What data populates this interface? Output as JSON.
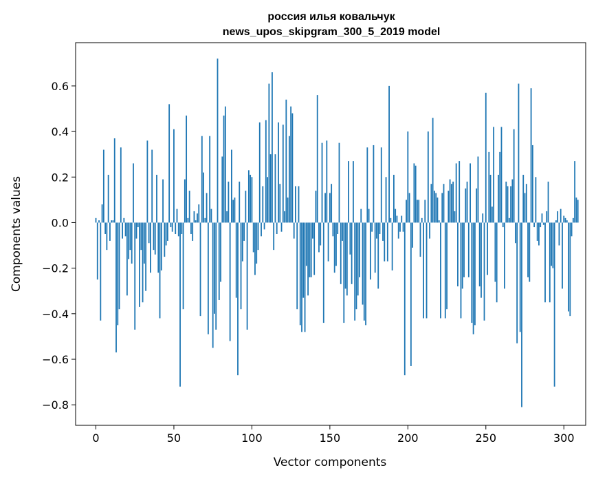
{
  "chart_data": {
    "type": "bar",
    "title_line1": "россия илья ковальчук",
    "title_line2": "news_upos_skipgram_300_5_2019 model",
    "xlabel": "Vector components",
    "ylabel": "Components values",
    "xlim": [
      -13,
      314
    ],
    "ylim": [
      -0.89,
      0.79
    ],
    "xticks": [
      0,
      50,
      100,
      150,
      200,
      250,
      300
    ],
    "yticks": [
      -0.8,
      -0.6,
      -0.4,
      -0.2,
      0.0,
      0.2,
      0.4,
      0.6
    ],
    "ytick_labels": [
      "−0.8",
      "−0.6",
      "−0.4",
      "−0.2",
      "0.0",
      "0.2",
      "0.4",
      "0.6"
    ],
    "bar_color": "#1f77b4",
    "values": [
      0.02,
      -0.25,
      0.01,
      -0.43,
      0.08,
      0.32,
      -0.05,
      -0.12,
      0.21,
      -0.08,
      0.01,
      0.01,
      0.37,
      -0.57,
      -0.45,
      -0.38,
      0.33,
      -0.07,
      0.02,
      -0.06,
      -0.32,
      -0.16,
      -0.12,
      -0.18,
      0.26,
      -0.47,
      -0.07,
      -0.02,
      -0.37,
      -0.12,
      -0.35,
      -0.18,
      -0.3,
      0.36,
      -0.09,
      -0.22,
      0.32,
      -0.12,
      -0.14,
      0.21,
      -0.22,
      -0.42,
      -0.21,
      0.19,
      -0.15,
      -0.1,
      -0.08,
      0.52,
      -0.02,
      -0.04,
      0.41,
      -0.05,
      0.06,
      -0.06,
      -0.72,
      -0.05,
      -0.38,
      0.19,
      0.47,
      0.02,
      0.14,
      -0.05,
      -0.08,
      0.05,
      0.01,
      0.04,
      0.08,
      -0.41,
      0.38,
      0.22,
      0.02,
      0.13,
      -0.49,
      0.38,
      0.06,
      -0.55,
      -0.4,
      -0.47,
      0.72,
      -0.34,
      -0.26,
      0.29,
      0.47,
      0.51,
      0.05,
      0.18,
      -0.52,
      0.32,
      0.1,
      0.11,
      -0.33,
      -0.67,
      0.18,
      -0.38,
      -0.17,
      -0.08,
      0.14,
      -0.47,
      0.23,
      0.21,
      0.2,
      -0.13,
      -0.23,
      -0.18,
      -0.12,
      0.44,
      -0.06,
      0.16,
      -0.03,
      0.45,
      0.2,
      0.61,
      0.3,
      0.66,
      -0.12,
      0.3,
      -0.05,
      0.44,
      0.17,
      -0.04,
      0.43,
      0.05,
      0.54,
      0.11,
      0.38,
      0.51,
      0.48,
      -0.07,
      0.16,
      -0.38,
      0.16,
      -0.45,
      -0.48,
      -0.33,
      -0.48,
      -0.19,
      -0.32,
      -0.24,
      -0.24,
      -0.07,
      -0.23,
      0.14,
      0.56,
      -0.13,
      -0.1,
      0.35,
      -0.44,
      0.13,
      0.36,
      -0.17,
      0.13,
      0.17,
      -0.06,
      -0.22,
      -0.19,
      -0.05,
      0.35,
      -0.27,
      -0.08,
      -0.44,
      -0.29,
      -0.32,
      0.27,
      -0.14,
      -0.27,
      0.27,
      -0.43,
      -0.38,
      -0.32,
      -0.24,
      0.06,
      -0.36,
      -0.43,
      -0.45,
      0.33,
      0.06,
      -0.25,
      -0.04,
      0.34,
      -0.22,
      -0.07,
      -0.29,
      -0.05,
      0.33,
      -0.08,
      -0.17,
      0.2,
      -0.17,
      0.6,
      0.02,
      -0.21,
      0.21,
      0.06,
      0.03,
      -0.07,
      -0.04,
      0.03,
      -0.04,
      -0.67,
      0.1,
      0.4,
      0.13,
      -0.63,
      -0.11,
      0.26,
      0.25,
      0.1,
      0.1,
      -0.15,
      0.02,
      -0.42,
      0.1,
      -0.42,
      0.4,
      -0.07,
      0.17,
      0.46,
      0.14,
      0.13,
      0.11,
      0.01,
      -0.42,
      0.13,
      0.17,
      -0.42,
      -0.38,
      0.14,
      0.19,
      0.17,
      0.18,
      0.05,
      0.26,
      -0.28,
      0.27,
      -0.42,
      -0.29,
      -0.24,
      0.15,
      0.18,
      -0.24,
      0.26,
      -0.44,
      -0.49,
      -0.45,
      0.15,
      0.29,
      -0.28,
      -0.33,
      0.04,
      -0.43,
      0.57,
      -0.23,
      0.31,
      0.21,
      0.07,
      0.42,
      -0.26,
      -0.35,
      0.21,
      0.31,
      0.42,
      -0.02,
      -0.29,
      0.18,
      0.16,
      0.02,
      0.16,
      0.19,
      0.41,
      -0.09,
      -0.53,
      0.61,
      -0.48,
      -0.81,
      0.21,
      0.13,
      0.17,
      -0.24,
      -0.26,
      0.59,
      0.34,
      -0.02,
      0.2,
      -0.08,
      -0.1,
      -0.02,
      0.04,
      -0.01,
      -0.35,
      0.05,
      0.18,
      -0.35,
      -0.19,
      -0.2,
      -0.72,
      0.01,
      0.05,
      -0.1,
      0.06,
      -0.29,
      0.03,
      0.02,
      0.01,
      -0.39,
      -0.41,
      -0.06,
      0.02,
      0.27,
      0.11,
      0.1
    ]
  }
}
